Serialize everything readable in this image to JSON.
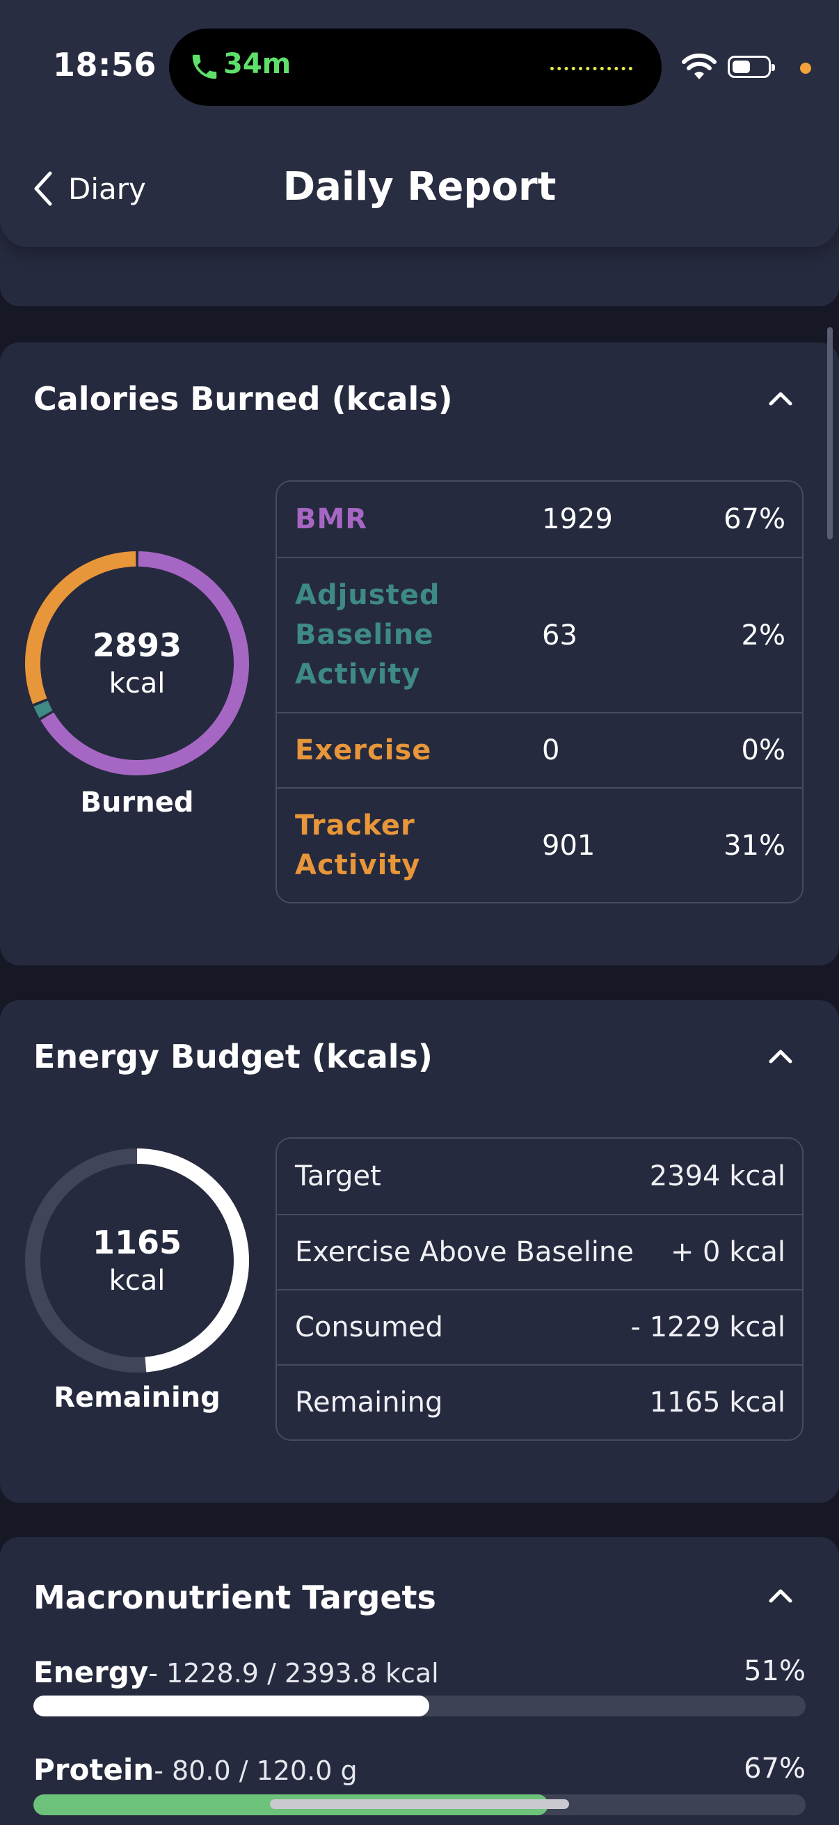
{
  "status_bar": {
    "time": "18:56",
    "call_duration": "34m",
    "icons": [
      "phone-icon",
      "wifi-icon",
      "battery-icon",
      "privacy-dot-icon"
    ],
    "battery_level": 0.5
  },
  "header": {
    "back_label": "Diary",
    "title": "Daily Report"
  },
  "calories_burned": {
    "title": "Calories Burned (kcals)",
    "total_value": "2893",
    "total_unit": "kcal",
    "caption": "Burned",
    "rows": [
      {
        "label": "BMR",
        "value": "1929",
        "percent": "67%",
        "color": "#a667c4",
        "fraction": 0.667
      },
      {
        "label": "Adjusted Baseline Activity",
        "value": "63",
        "percent": "2%",
        "color": "#3e8a85",
        "fraction": 0.022
      },
      {
        "label": "Exercise",
        "value": "0",
        "percent": "0%",
        "color": "#e8963a",
        "fraction": 0.0
      },
      {
        "label": "Tracker Activity",
        "value": "901",
        "percent": "31%",
        "color": "#e8963a",
        "fraction": 0.311
      }
    ]
  },
  "energy_budget": {
    "title": "Energy Budget (kcals)",
    "remaining_value": "1165",
    "remaining_unit": "kcal",
    "caption": "Remaining",
    "remaining_fraction": 0.4866,
    "rows": [
      {
        "label": "Target",
        "value": "2394 kcal"
      },
      {
        "label": "Exercise Above Baseline",
        "value": "+ 0 kcal"
      },
      {
        "label": "Consumed",
        "value": "- 1229 kcal"
      },
      {
        "label": "Remaining",
        "value": "1165 kcal"
      }
    ]
  },
  "macronutrients": {
    "title": "Macronutrient Targets",
    "items": [
      {
        "name": "Energy",
        "detail": "- 1228.9 / 2393.8 kcal",
        "percent": "51%",
        "fraction": 0.513,
        "color": "#ffffff"
      },
      {
        "name": "Protein",
        "detail": "- 80.0 / 120.0 g",
        "percent": "67%",
        "fraction": 0.667,
        "color": "#6cc27a"
      }
    ]
  },
  "colors": {
    "background": "#161826",
    "card": "#262a3e",
    "bmr": "#a667c4",
    "baseline": "#3e8a85",
    "exercise": "#e8963a",
    "tracker": "#e8963a"
  }
}
